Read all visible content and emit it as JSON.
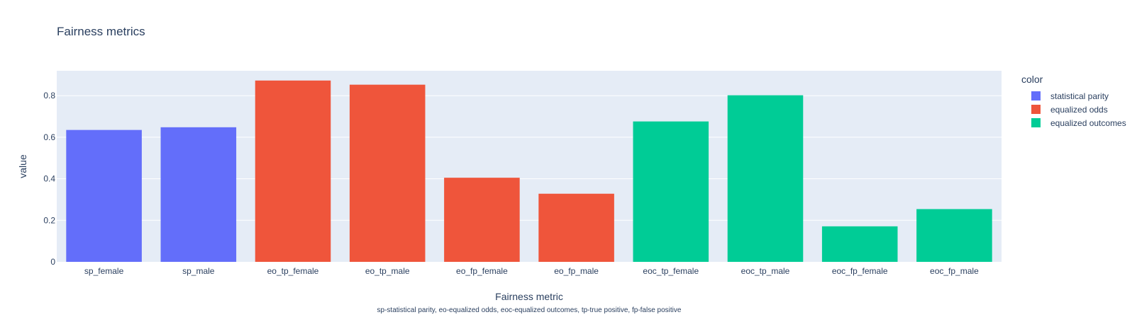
{
  "chart_data": {
    "type": "bar",
    "title": "Fairness metrics",
    "xlabel": "Fairness metric",
    "xlabel_note": "sp-statistical parity, eo-equalized odds, eoc-equalized outcomes, tp-true positive, fp-false positive",
    "ylabel": "value",
    "ylim": [
      0,
      0.92
    ],
    "yticks": [
      0,
      0.2,
      0.4,
      0.6,
      0.8
    ],
    "ytick_labels": [
      "0",
      "0.2",
      "0.4",
      "0.6",
      "0.8"
    ],
    "grid": true,
    "legend": {
      "title": "color",
      "placement": "right"
    },
    "categories": [
      "sp_female",
      "sp_male",
      "eo_tp_female",
      "eo_tp_male",
      "eo_fp_female",
      "eo_fp_male",
      "eoc_tp_female",
      "eoc_tp_male",
      "eoc_fp_female",
      "eoc_fp_male"
    ],
    "series": [
      {
        "name": "statistical parity",
        "color": "#636efa",
        "values": [
          0.635,
          0.648,
          null,
          null,
          null,
          null,
          null,
          null,
          null,
          null
        ]
      },
      {
        "name": "equalized odds",
        "color": "#ef553b",
        "values": [
          null,
          null,
          0.873,
          0.853,
          0.405,
          0.328,
          null,
          null,
          null,
          null
        ]
      },
      {
        "name": "equalized outcomes",
        "color": "#00cc96",
        "values": [
          null,
          null,
          null,
          null,
          null,
          null,
          0.676,
          0.802,
          0.171,
          0.254
        ]
      }
    ],
    "colors": {
      "plot_background": "#e5ecf6",
      "grid": "#ffffff",
      "text": "#2a3f5f"
    }
  }
}
